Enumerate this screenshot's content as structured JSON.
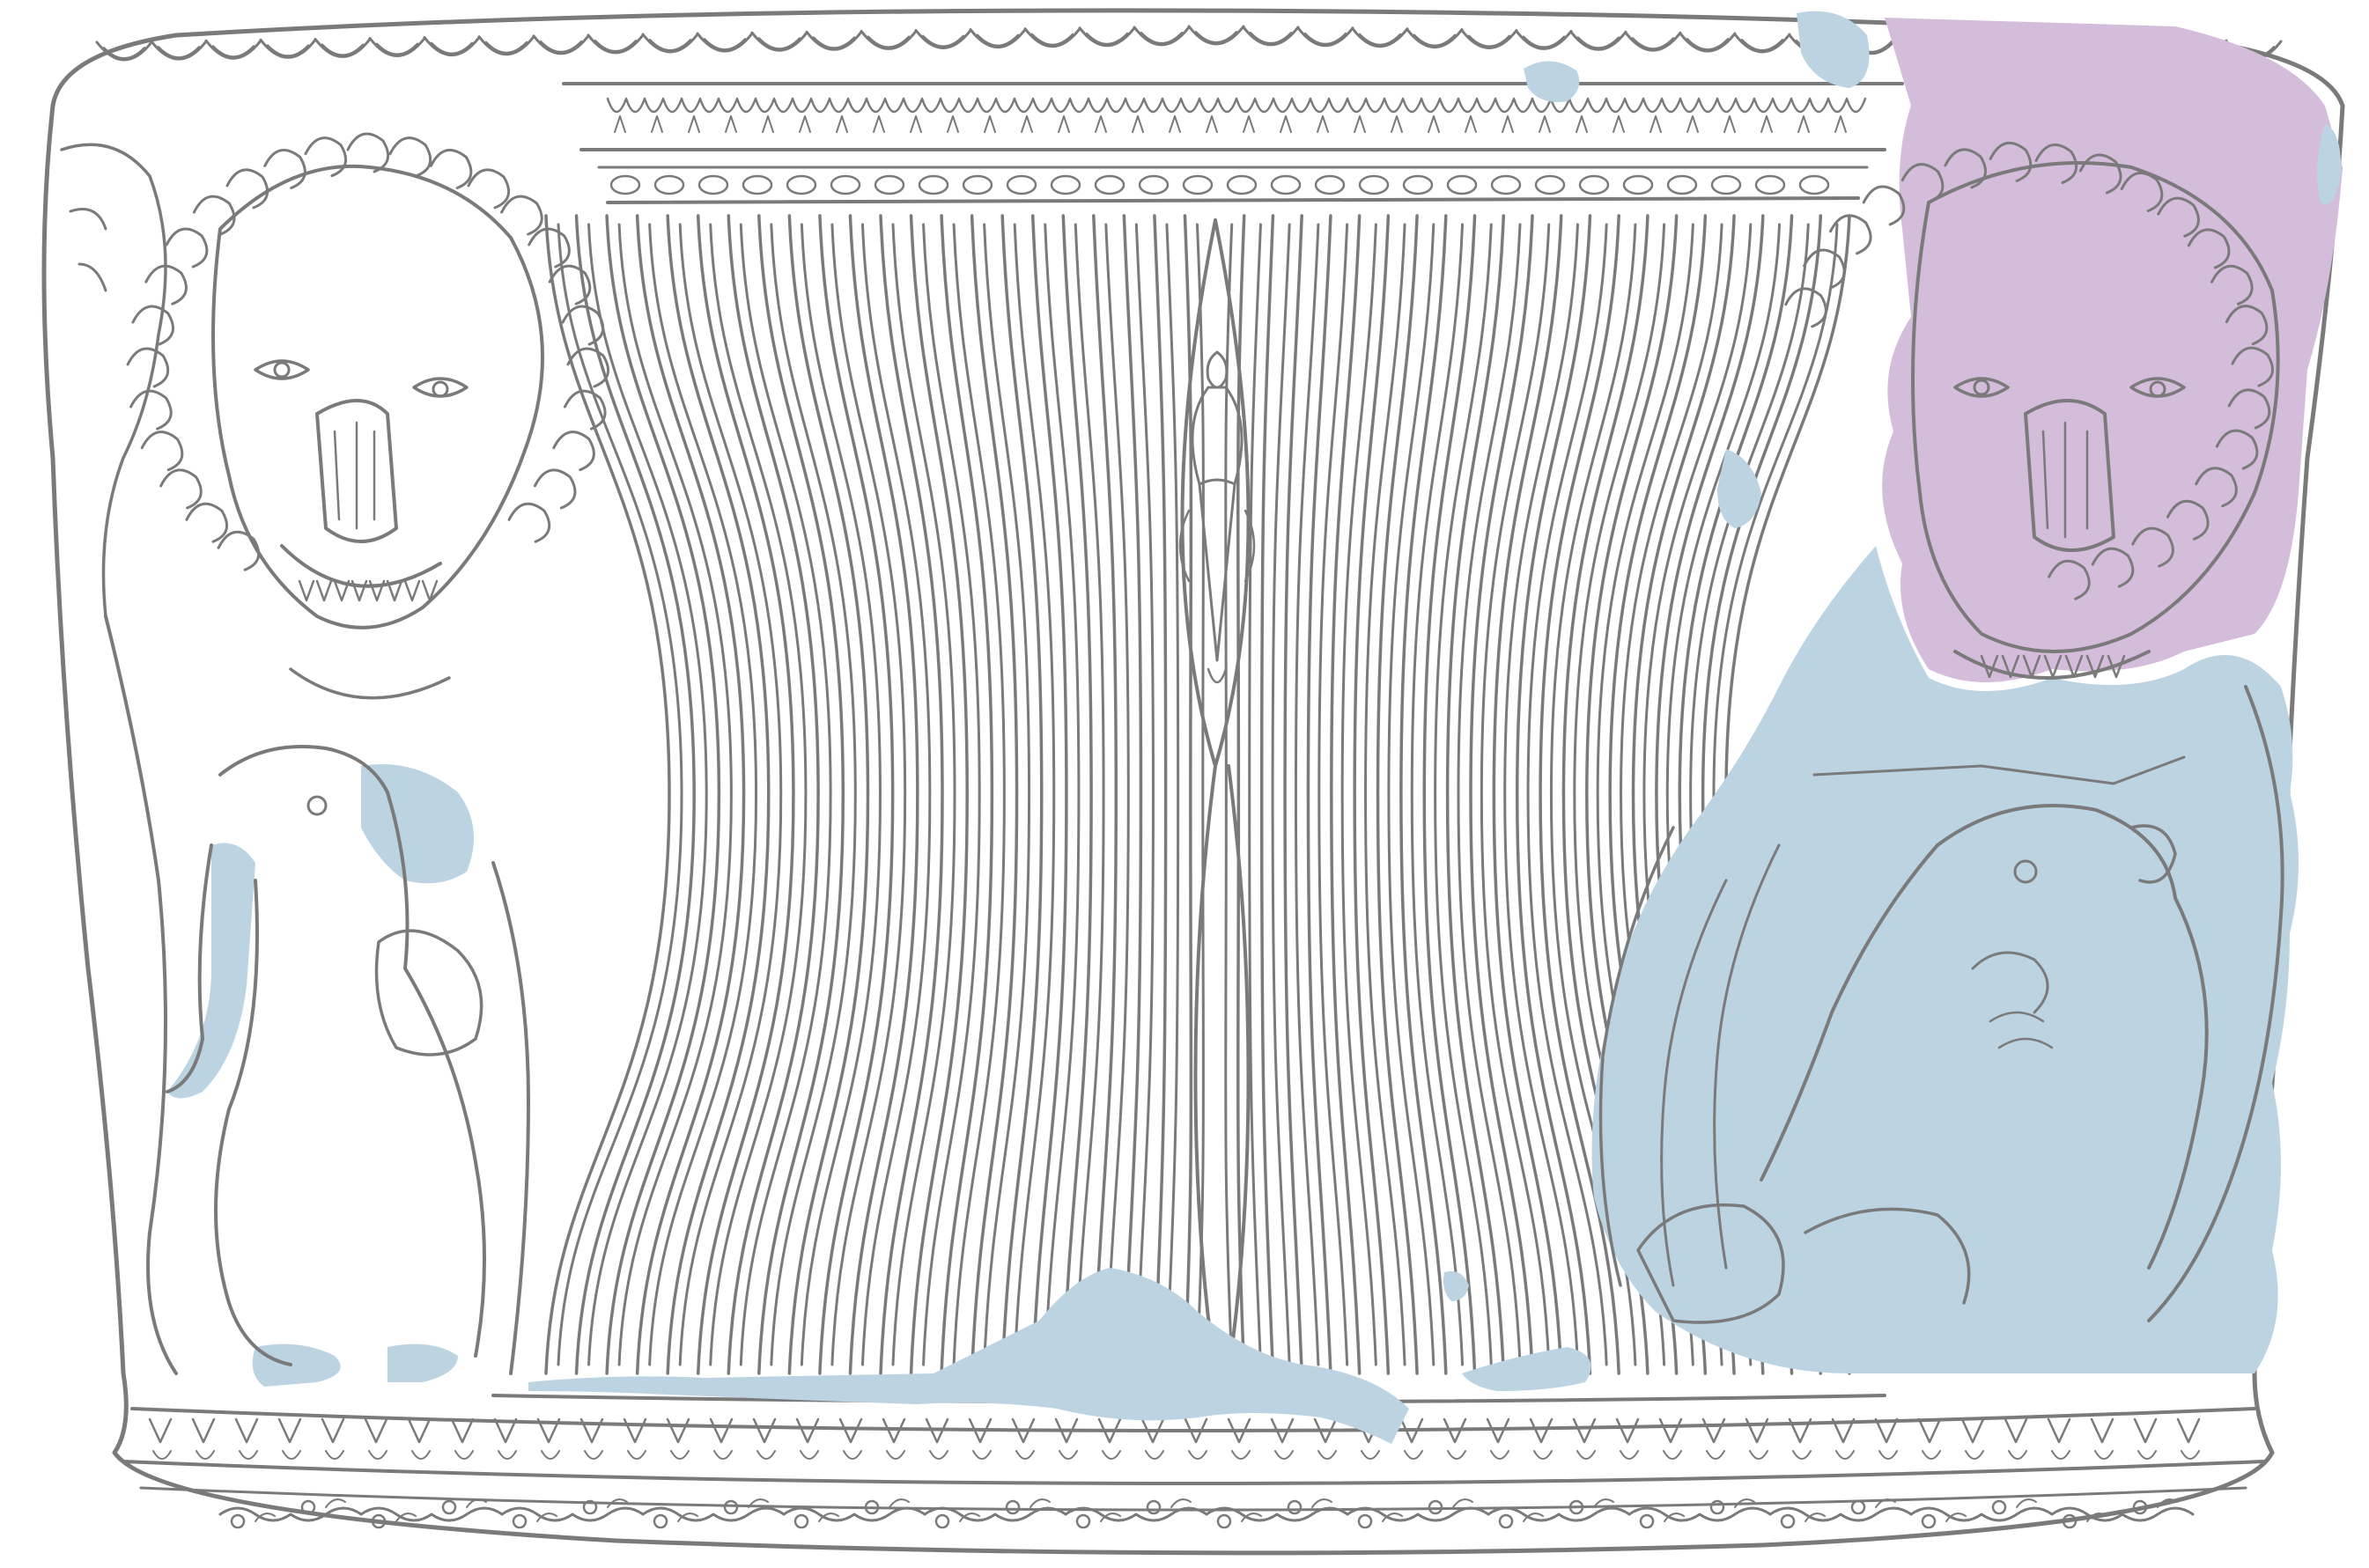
{
  "colors": {
    "background": "#ffffff",
    "line": "#7a7a7a",
    "restored_blue": "#bcd3e2",
    "restored_purple": "#d4bcdb"
  },
  "figure": {
    "subject": "lion-head-vessel-drawing",
    "regions": [
      {
        "key": "left-lion-head",
        "fill": "none"
      },
      {
        "key": "left-elephant",
        "fill": "none"
      },
      {
        "key": "central-fluted-panel",
        "fill": "none"
      },
      {
        "key": "right-lion-head",
        "fill": "restored_purple"
      },
      {
        "key": "right-elephant",
        "fill": "restored_blue"
      },
      {
        "key": "base-fragments",
        "fill": "restored_blue"
      },
      {
        "key": "small-patches",
        "fill": "restored_blue"
      }
    ]
  }
}
